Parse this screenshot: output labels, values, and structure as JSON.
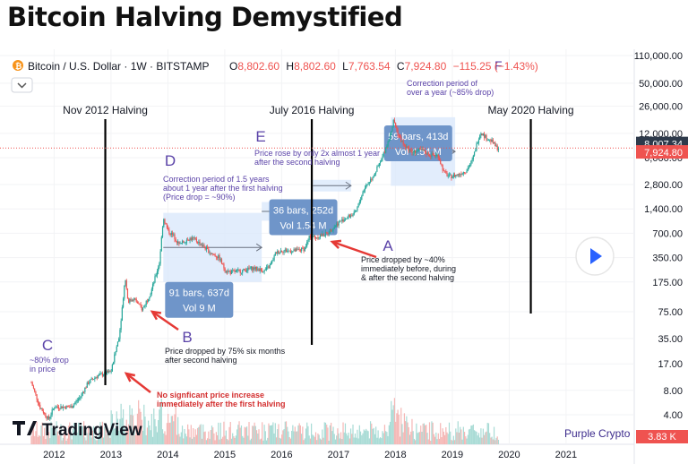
{
  "page_title": "Bitcoin Halving Demystified",
  "header": {
    "symbol": "Bitcoin / U.S. Dollar · 1W · BITSTAMP",
    "o_label": "O",
    "o_value": "8,802.60",
    "h_label": "H",
    "h_value": "8,802.60",
    "l_label": "L",
    "l_value": "7,763.54",
    "c_label": "C",
    "c_value": "7,924.80",
    "change": "−115.25 (−1.43%)"
  },
  "colors": {
    "up": "#26a69a",
    "down": "#ef5350",
    "annotation": "#5b43a8",
    "arrow": "#e53935",
    "range_fill": "#dbe9fb",
    "label_box": "#6f95c9"
  },
  "chart_data": {
    "type": "candlestick",
    "title": "Bitcoin / U.S. Dollar · 1W · BITSTAMP",
    "y_scale": "log",
    "ylim": [
      2.5,
      115000
    ],
    "y_ticks": [
      "110,000.00",
      "50,000.00",
      "26,000.00",
      "12,000.00",
      "6,000.00",
      "2,800.00",
      "1,400.00",
      "700.00",
      "350.00",
      "175.00",
      "75.00",
      "35.00",
      "17.00",
      "8.00",
      "4.00"
    ],
    "y_tick_values": [
      110000,
      50000,
      26000,
      12000,
      6000,
      2800,
      1400,
      700,
      350,
      175,
      75,
      35,
      17,
      8,
      4
    ],
    "x_ticks": [
      "2012",
      "2013",
      "2014",
      "2015",
      "2016",
      "2017",
      "2018",
      "2019",
      "2020",
      "2021"
    ],
    "x_tick_years": [
      2012,
      2013,
      2014,
      2015,
      2016,
      2017,
      2018,
      2019,
      2020,
      2021
    ],
    "price_path": [
      [
        2011.6,
        10
      ],
      [
        2011.75,
        5
      ],
      [
        2011.9,
        3.5
      ],
      [
        2012.0,
        5
      ],
      [
        2012.15,
        5
      ],
      [
        2012.3,
        5
      ],
      [
        2012.45,
        6.5
      ],
      [
        2012.6,
        10
      ],
      [
        2012.75,
        12
      ],
      [
        2012.9,
        13
      ],
      [
        2013.0,
        13.5
      ],
      [
        2013.15,
        40
      ],
      [
        2013.25,
        200
      ],
      [
        2013.3,
        100
      ],
      [
        2013.4,
        110
      ],
      [
        2013.55,
        80
      ],
      [
        2013.7,
        130
      ],
      [
        2013.85,
        300
      ],
      [
        2013.92,
        1100
      ],
      [
        2014.0,
        750
      ],
      [
        2014.1,
        650
      ],
      [
        2014.2,
        500
      ],
      [
        2014.35,
        600
      ],
      [
        2014.45,
        600
      ],
      [
        2014.6,
        500
      ],
      [
        2014.75,
        400
      ],
      [
        2014.9,
        350
      ],
      [
        2015.0,
        250
      ],
      [
        2015.1,
        230
      ],
      [
        2015.3,
        240
      ],
      [
        2015.5,
        260
      ],
      [
        2015.7,
        240
      ],
      [
        2015.8,
        280
      ],
      [
        2015.9,
        400
      ],
      [
        2016.0,
        430
      ],
      [
        2016.2,
        420
      ],
      [
        2016.4,
        450
      ],
      [
        2016.5,
        650
      ],
      [
        2016.6,
        620
      ],
      [
        2016.8,
        700
      ],
      [
        2017.0,
        950
      ],
      [
        2017.15,
        1100
      ],
      [
        2017.3,
        1250
      ],
      [
        2017.45,
        2500
      ],
      [
        2017.6,
        3500
      ],
      [
        2017.75,
        5500
      ],
      [
        2017.9,
        11000
      ],
      [
        2017.97,
        17500
      ],
      [
        2018.05,
        11500
      ],
      [
        2018.15,
        8500
      ],
      [
        2018.3,
        7000
      ],
      [
        2018.45,
        7500
      ],
      [
        2018.6,
        6500
      ],
      [
        2018.75,
        6400
      ],
      [
        2018.85,
        4000
      ],
      [
        2018.95,
        3500
      ],
      [
        2019.1,
        3700
      ],
      [
        2019.25,
        4200
      ],
      [
        2019.35,
        5500
      ],
      [
        2019.45,
        10000
      ],
      [
        2019.5,
        12500
      ],
      [
        2019.6,
        10500
      ],
      [
        2019.7,
        9500
      ],
      [
        2019.78,
        8000
      ],
      [
        2019.82,
        7924.8
      ]
    ],
    "current_price_labels": [
      "8,007.34",
      "7,924.80"
    ],
    "volume_label": "3.83 K",
    "halvings": [
      {
        "label": "Nov 2012 Halving",
        "x": 2012.9
      },
      {
        "label": "July 2016 Halving",
        "x": 2016.53
      },
      {
        "label": "May 2020 Halving",
        "x": 2020.38
      }
    ],
    "ranges": [
      {
        "x0": 2013.92,
        "x1": 2015.65,
        "y0": 175,
        "y1": 1250,
        "label_line1": "91 bars, 637d",
        "label_line2": "Vol 9 M",
        "label_x": 2014.55,
        "label_y": 100
      },
      {
        "x0": 2015.65,
        "x1": 2016.35,
        "y0": 1000,
        "y1": 1700,
        "label_line1": "36 bars, 252d",
        "label_line2": "Vol 1.54 M",
        "label_x": 2016.38,
        "label_y": 1050
      },
      {
        "x0": 2017.92,
        "x1": 2019.05,
        "y0": 2700,
        "y1": 19000,
        "label_line1": "59 bars, 413d",
        "label_line2": "Vol 4.54 M",
        "label_x": 2018.4,
        "label_y": 8600
      },
      {
        "x0": 2016.55,
        "x1": 2017.22,
        "y0": 2300,
        "y1": 3200,
        "label_line1": "",
        "label_line2": "",
        "label_x": 2016.9,
        "label_y": 2700
      }
    ],
    "annotations": {
      "a_letter": "A",
      "a_text": [
        "Price dropped by ~40%",
        "immediately before, during",
        "& after the second halving"
      ],
      "b_letter": "B",
      "b_text": [
        "Price dropped by 75% six months",
        "after second halving"
      ],
      "c_letter": "C",
      "c_text": [
        "~80% drop",
        "in price"
      ],
      "d_letter": "D",
      "d_text": [
        "Correction period of 1.5 years",
        "about 1 year after the first halving",
        "(Price drop = ~90%)"
      ],
      "e_letter": "E",
      "e_text": [
        "Price rose by only 2x almost 1 year",
        "after the second halving"
      ],
      "f_text": [
        "Correction period of",
        "over a year (~85% drop)"
      ],
      "first_halving_text": [
        "No signficant price increase",
        "immediately after the first halving"
      ]
    }
  },
  "branding": {
    "tradingview": "TradingView",
    "purple_crypto": "Purple Crypto"
  },
  "controls": {
    "collapse_icon": "chevron-down-icon",
    "play_icon": "play-icon"
  }
}
